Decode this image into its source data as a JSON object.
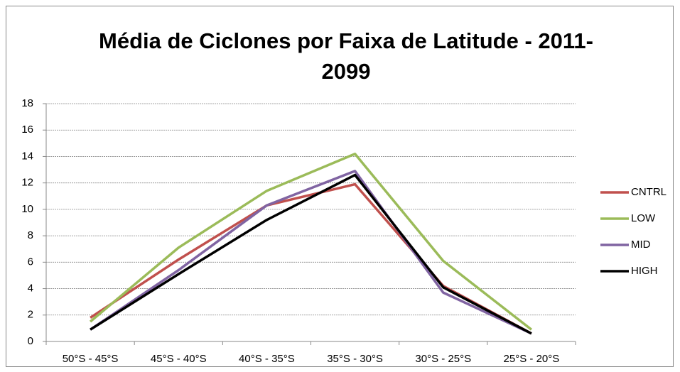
{
  "chart_data": {
    "type": "line",
    "title": "Média de Ciclones por Faixa de Latitude - 2011-2099",
    "categories": [
      "50°S - 45°S",
      "45°S - 40°S",
      "40°S - 35°S",
      "35°S - 30°S",
      "30°S - 25°S",
      "25°S - 20°S"
    ],
    "series": [
      {
        "name": "CNTRL",
        "color": "#c0504d",
        "values": [
          1.8,
          6.2,
          10.3,
          11.9,
          4.2,
          0.6
        ]
      },
      {
        "name": "LOW",
        "color": "#9bbb59",
        "values": [
          1.5,
          7.1,
          11.4,
          14.2,
          6.1,
          0.9
        ]
      },
      {
        "name": "MID",
        "color": "#8064a2",
        "values": [
          0.9,
          5.4,
          10.3,
          12.9,
          3.7,
          0.6
        ]
      },
      {
        "name": "HIGH",
        "color": "#000000",
        "values": [
          0.9,
          5.1,
          9.2,
          12.6,
          4.1,
          0.6
        ]
      }
    ],
    "ylim": [
      0,
      18
    ],
    "yticks": [
      0,
      2,
      4,
      6,
      8,
      10,
      12,
      14,
      16,
      18
    ],
    "grid": true,
    "legend": "right"
  }
}
